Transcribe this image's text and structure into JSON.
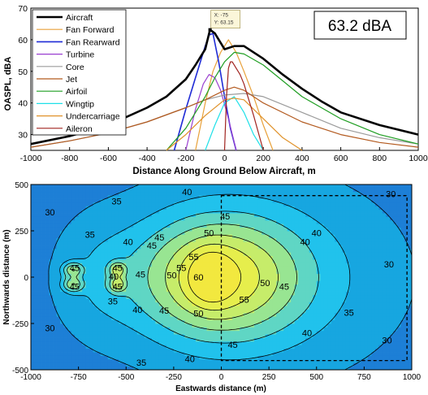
{
  "chart_data": [
    {
      "type": "line",
      "title": "",
      "xlabel": "Distance Along Ground Below Aircraft, m",
      "ylabel": "OASPL, dBA",
      "xlim": [
        -1000,
        1000
      ],
      "ylim": [
        25,
        70
      ],
      "xticks": [
        -1000,
        -800,
        -600,
        -400,
        -200,
        0,
        200,
        400,
        600,
        800,
        1000
      ],
      "yticks": [
        30,
        40,
        50,
        60,
        70
      ],
      "legend_position": "top-left",
      "annotation_box": "63.2 dBA",
      "datatip": {
        "x_text": "X: -75",
        "y_text": "Y: 63.15",
        "x": -75,
        "y": 63.15
      },
      "series": [
        {
          "name": "Aircraft",
          "color": "#000000",
          "width": 2.6,
          "x": [
            -1000,
            -800,
            -600,
            -400,
            -300,
            -200,
            -150,
            -100,
            -75,
            -50,
            0,
            50,
            100,
            200,
            300,
            400,
            500,
            600,
            800,
            1000
          ],
          "y": [
            27,
            29.5,
            33,
            38.5,
            42,
            47.5,
            52,
            57,
            63.15,
            62,
            57,
            58,
            58,
            54,
            49,
            44.5,
            40.5,
            37,
            33,
            30
          ]
        },
        {
          "name": "Fan Forward",
          "color": "#e8a13a",
          "width": 1.2,
          "x": [
            -150,
            -100,
            -60,
            -20,
            20,
            60,
            100,
            150,
            200,
            250
          ],
          "y": [
            25,
            40,
            50,
            56,
            60,
            56,
            50,
            42,
            33,
            25
          ]
        },
        {
          "name": "Fan Rearward",
          "color": "#1f2bd6",
          "width": 1.6,
          "x": [
            -260,
            -200,
            -150,
            -100,
            -80,
            -60,
            -30,
            0,
            30,
            60
          ],
          "y": [
            25,
            38,
            48,
            58,
            61.5,
            62,
            53,
            42,
            32,
            25
          ]
        },
        {
          "name": "Turbine",
          "color": "#9a3fd0",
          "width": 1.2,
          "x": [
            -200,
            -150,
            -110,
            -80,
            -50,
            -20,
            20,
            60
          ],
          "y": [
            25,
            38,
            46,
            49,
            48,
            44,
            35,
            25
          ]
        },
        {
          "name": "Core",
          "color": "#9b9b9b",
          "width": 1.2,
          "x": [
            -1000,
            -800,
            -600,
            -400,
            -200,
            -100,
            0,
            100,
            200,
            400,
            600,
            800,
            1000
          ],
          "y": [
            26,
            28,
            30.5,
            34,
            38.5,
            41,
            42.5,
            43,
            42,
            37,
            32,
            29,
            27
          ]
        },
        {
          "name": "Jet",
          "color": "#b35a1f",
          "width": 1.2,
          "x": [
            -1000,
            -800,
            -600,
            -400,
            -200,
            -100,
            0,
            50,
            100,
            200,
            400,
            600,
            800,
            1000
          ],
          "y": [
            26,
            28,
            30.5,
            34,
            38.5,
            41,
            44,
            45,
            44,
            40,
            34,
            30,
            27.5,
            26
          ]
        },
        {
          "name": "Airfoil",
          "color": "#1f9e22",
          "width": 1.2,
          "x": [
            -300,
            -200,
            -100,
            -50,
            0,
            50,
            100,
            200,
            300,
            400,
            600,
            800,
            1000
          ],
          "y": [
            25,
            32,
            42,
            48,
            53,
            56,
            55.5,
            52,
            47,
            42,
            35,
            30,
            27
          ]
        },
        {
          "name": "Wingtip",
          "color": "#1fe0e8",
          "width": 1.2,
          "x": [
            -100,
            -50,
            0,
            50,
            100,
            150,
            200
          ],
          "y": [
            25,
            33,
            40,
            42,
            37,
            30,
            25
          ]
        },
        {
          "name": "Undercarriage",
          "color": "#e0922a",
          "width": 1.2,
          "x": [
            -300,
            -200,
            -100,
            0,
            50,
            100,
            200,
            300,
            400
          ],
          "y": [
            25,
            30,
            36,
            41,
            41.5,
            41,
            35,
            29,
            25
          ]
        },
        {
          "name": "Aileron",
          "color": "#a0231f",
          "width": 1.2,
          "x": [
            0,
            10,
            20,
            30,
            40,
            60,
            80,
            100,
            150,
            200
          ],
          "y": [
            25,
            42,
            51,
            53,
            53,
            51,
            49,
            46,
            36,
            25
          ]
        }
      ]
    },
    {
      "type": "heatmap",
      "title": "",
      "xlabel": "Eastwards distance (m)",
      "ylabel": "Northwards distance (m)",
      "xlim": [
        -1000,
        1000
      ],
      "ylim": [
        -500,
        500
      ],
      "xticks": [
        -1000,
        -750,
        -500,
        -250,
        0,
        250,
        500,
        750,
        1000
      ],
      "yticks": [
        -500,
        -250,
        0,
        250,
        500
      ],
      "contour_levels": [
        30,
        35,
        40,
        45,
        50,
        55,
        60
      ],
      "level_colors": [
        "#1d7fd6",
        "#17a6e0",
        "#21c2ec",
        "#5fd6c4",
        "#98e592",
        "#c6ec6a",
        "#e6ee4c",
        "#f2e83f"
      ],
      "dashed_box": {
        "x": [
          0,
          975
        ],
        "y": [
          -450,
          440
        ]
      },
      "contour_labels": [
        {
          "text": "30",
          "x": -900,
          "y": 350
        },
        {
          "text": "35",
          "x": -550,
          "y": 410
        },
        {
          "text": "40",
          "x": -180,
          "y": 460
        },
        {
          "text": "45",
          "x": 20,
          "y": 330
        },
        {
          "text": "35",
          "x": -690,
          "y": 230
        },
        {
          "text": "40",
          "x": -490,
          "y": 190
        },
        {
          "text": "45",
          "x": -325,
          "y": 215
        },
        {
          "text": "45",
          "x": -365,
          "y": 170
        },
        {
          "text": "50",
          "x": -65,
          "y": 240
        },
        {
          "text": "55",
          "x": -145,
          "y": 110
        },
        {
          "text": "55",
          "x": -210,
          "y": 50
        },
        {
          "text": "60",
          "x": -120,
          "y": 0
        },
        {
          "text": "50",
          "x": -260,
          "y": 10
        },
        {
          "text": "45",
          "x": -425,
          "y": 15
        },
        {
          "text": "40",
          "x": -565,
          "y": 5
        },
        {
          "text": "45",
          "x": -770,
          "y": 50
        },
        {
          "text": "45",
          "x": -770,
          "y": -50
        },
        {
          "text": "45",
          "x": -545,
          "y": 50
        },
        {
          "text": "45",
          "x": -545,
          "y": -50
        },
        {
          "text": "35",
          "x": -570,
          "y": -130
        },
        {
          "text": "40",
          "x": -440,
          "y": -175
        },
        {
          "text": "45",
          "x": -300,
          "y": -180
        },
        {
          "text": "50",
          "x": -120,
          "y": -195
        },
        {
          "text": "50",
          "x": 230,
          "y": -30
        },
        {
          "text": "45",
          "x": 330,
          "y": -50
        },
        {
          "text": "55",
          "x": 120,
          "y": -120
        },
        {
          "text": "40",
          "x": 500,
          "y": 240
        },
        {
          "text": "40",
          "x": 440,
          "y": 190
        },
        {
          "text": "30",
          "x": 890,
          "y": 450
        },
        {
          "text": "30",
          "x": 880,
          "y": 70
        },
        {
          "text": "30",
          "x": 870,
          "y": -340
        },
        {
          "text": "35",
          "x": 670,
          "y": -190
        },
        {
          "text": "40",
          "x": 450,
          "y": -300
        },
        {
          "text": "45",
          "x": 60,
          "y": -365
        },
        {
          "text": "40",
          "x": -165,
          "y": -440
        },
        {
          "text": "35",
          "x": -420,
          "y": -460
        },
        {
          "text": "30",
          "x": -900,
          "y": -275
        }
      ]
    }
  ]
}
